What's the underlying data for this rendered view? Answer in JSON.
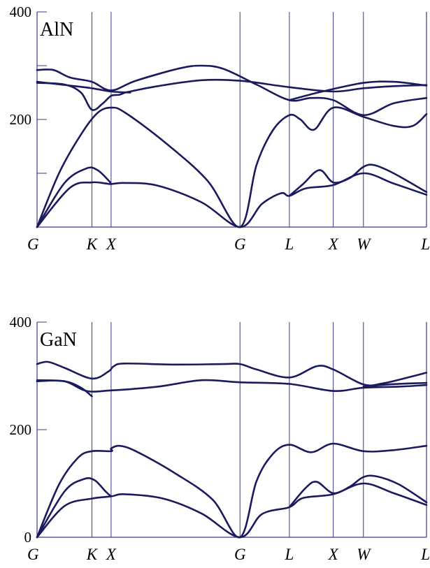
{
  "chart_data": [
    {
      "type": "line",
      "title": "AlN",
      "xlabel": "",
      "ylabel": "",
      "ylim": [
        0,
        400
      ],
      "yticks": [
        {
          "value": 0,
          "label": ""
        },
        {
          "value": 100,
          "label": ""
        },
        {
          "value": 200,
          "label": "200"
        },
        {
          "value": 300,
          "label": ""
        },
        {
          "value": 400,
          "label": "400"
        }
      ],
      "x_points": [
        "G",
        "K",
        "X",
        "G",
        "L",
        "X",
        "W",
        "L"
      ],
      "x_positions": [
        0,
        1.0,
        1.35,
        3.7,
        4.6,
        5.4,
        5.95,
        7.1
      ],
      "series": [
        {
          "values": [
            [
              0,
              0
            ],
            [
              0.6,
              73
            ],
            [
              1.0,
              83
            ],
            [
              1.25,
              81
            ],
            [
              1.35,
              80
            ],
            [
              1.6,
              82
            ],
            [
              2.2,
              77
            ],
            [
              3.0,
              46
            ],
            [
              3.7,
              0
            ],
            [
              4.1,
              43
            ],
            [
              4.45,
              63
            ],
            [
              4.6,
              58
            ],
            [
              4.9,
              72
            ],
            [
              5.4,
              78
            ],
            [
              5.95,
              100
            ],
            [
              6.5,
              81
            ],
            [
              7.1,
              60
            ]
          ]
        },
        {
          "values": [
            [
              0,
              0
            ],
            [
              0.5,
              82
            ],
            [
              0.9,
              109
            ],
            [
              1.1,
              106
            ],
            [
              1.3,
              87
            ],
            [
              1.35,
              80
            ]
          ]
        },
        {
          "values": [
            [
              4.6,
              58
            ],
            [
              4.85,
              80
            ],
            [
              5.15,
              106
            ],
            [
              5.4,
              83
            ],
            [
              5.7,
              91
            ],
            [
              5.95,
              112
            ],
            [
              6.15,
              115
            ],
            [
              6.5,
              100
            ],
            [
              7.1,
              65
            ]
          ]
        },
        {
          "values": [
            [
              0,
              0
            ],
            [
              0.4,
              100
            ],
            [
              0.8,
              172
            ],
            [
              1.1,
              212
            ],
            [
              1.35,
              222
            ],
            [
              1.6,
              213
            ],
            [
              2.3,
              160
            ],
            [
              3.1,
              87
            ],
            [
              3.7,
              0
            ],
            [
              4.0,
              115
            ],
            [
              4.3,
              180
            ],
            [
              4.6,
              208
            ],
            [
              4.8,
              200
            ],
            [
              5.05,
              181
            ],
            [
              5.4,
              222
            ],
            [
              5.95,
              205
            ],
            [
              6.5,
              188
            ],
            [
              6.85,
              188
            ],
            [
              7.1,
              210
            ]
          ]
        },
        {
          "values": [
            [
              0,
              268
            ],
            [
              0.5,
              265
            ],
            [
              0.8,
              250
            ],
            [
              1.0,
              218
            ],
            [
              1.2,
              230
            ],
            [
              1.35,
              244
            ],
            [
              1.5,
              246
            ],
            [
              1.6,
              250
            ]
          ]
        },
        {
          "values": [
            [
              0,
              292
            ],
            [
              0.3,
              292
            ],
            [
              0.6,
              278
            ],
            [
              1.0,
              270
            ],
            [
              1.35,
              254
            ],
            [
              1.8,
              272
            ],
            [
              2.6,
              295
            ],
            [
              3.0,
              300
            ],
            [
              3.4,
              294
            ],
            [
              4.0,
              265
            ],
            [
              4.6,
              236
            ],
            [
              5.0,
              240
            ],
            [
              5.4,
              236
            ],
            [
              5.95,
              208
            ],
            [
              6.5,
              230
            ],
            [
              7.1,
              240
            ]
          ]
        },
        {
          "values": [
            [
              0,
              270
            ],
            [
              0.6,
              263
            ],
            [
              1.0,
              258
            ],
            [
              1.35,
              252
            ],
            [
              1.7,
              250
            ]
          ]
        },
        {
          "values": [
            [
              1.6,
              250
            ],
            [
              2.2,
              262
            ],
            [
              3.0,
              273
            ],
            [
              3.7,
              272
            ],
            [
              4.6,
              260
            ],
            [
              5.4,
              252
            ],
            [
              5.95,
              258
            ],
            [
              6.5,
              262
            ],
            [
              7.1,
              264
            ]
          ]
        },
        {
          "values": [
            [
              4.6,
              236
            ],
            [
              5.2,
              252
            ],
            [
              5.95,
              268
            ],
            [
              6.5,
              270
            ],
            [
              7.1,
              263
            ]
          ]
        }
      ]
    },
    {
      "type": "line",
      "title": "GaN",
      "xlabel": "",
      "ylabel": "",
      "ylim": [
        0,
        400
      ],
      "yticks": [
        {
          "value": 0,
          "label": "0"
        },
        {
          "value": 200,
          "label": "200"
        },
        {
          "value": 400,
          "label": "400"
        }
      ],
      "x_points": [
        "G",
        "K",
        "X",
        "G",
        "L",
        "X",
        "W",
        "L"
      ],
      "x_positions": [
        0,
        1.0,
        1.35,
        3.7,
        4.6,
        5.4,
        5.95,
        7.1
      ],
      "series": [
        {
          "values": [
            [
              0,
              0
            ],
            [
              0.5,
              58
            ],
            [
              1.0,
              72
            ],
            [
              1.35,
              76
            ],
            [
              1.6,
              80
            ],
            [
              2.3,
              72
            ],
            [
              3.0,
              44
            ],
            [
              3.7,
              0
            ],
            [
              4.1,
              43
            ],
            [
              4.6,
              56
            ],
            [
              4.85,
              73
            ],
            [
              5.4,
              80
            ],
            [
              5.95,
              100
            ],
            [
              6.5,
              82
            ],
            [
              7.1,
              60
            ]
          ]
        },
        {
          "values": [
            [
              0,
              0
            ],
            [
              0.5,
              85
            ],
            [
              0.85,
              108
            ],
            [
              1.05,
              106
            ],
            [
              1.25,
              85
            ],
            [
              1.35,
              76
            ]
          ]
        },
        {
          "values": [
            [
              4.6,
              56
            ],
            [
              4.9,
              92
            ],
            [
              5.1,
              103
            ],
            [
              5.4,
              82
            ],
            [
              5.7,
              94
            ],
            [
              5.95,
              112
            ],
            [
              6.2,
              113
            ],
            [
              6.6,
              98
            ],
            [
              7.1,
              65
            ]
          ]
        },
        {
          "values": [
            [
              0,
              0
            ],
            [
              0.4,
              98
            ],
            [
              0.75,
              148
            ],
            [
              1.0,
              160
            ],
            [
              1.35,
              160
            ],
            [
              1.35,
              165
            ],
            [
              1.5,
              170
            ],
            [
              1.8,
              160
            ],
            [
              2.5,
              120
            ],
            [
              3.2,
              70
            ],
            [
              3.7,
              0
            ],
            [
              4.0,
              104
            ],
            [
              4.3,
              155
            ],
            [
              4.6,
              172
            ],
            [
              5.0,
              158
            ],
            [
              5.4,
              174
            ],
            [
              5.95,
              160
            ],
            [
              6.5,
              162
            ],
            [
              7.1,
              170
            ]
          ]
        },
        {
          "values": [
            [
              0,
              292
            ],
            [
              0.5,
              290
            ],
            [
              0.8,
              278
            ],
            [
              1.0,
              262
            ]
          ]
        },
        {
          "values": [
            [
              0,
              290
            ],
            [
              0.5,
              290
            ],
            [
              0.9,
              272
            ],
            [
              1.35,
              273
            ],
            [
              2.2,
              280
            ],
            [
              3.0,
              292
            ],
            [
              3.7,
              288
            ],
            [
              4.6,
              285
            ],
            [
              5.4,
              272
            ],
            [
              5.95,
              278
            ],
            [
              6.6,
              280
            ],
            [
              7.1,
              283
            ]
          ]
        },
        {
          "values": [
            [
              0,
              322
            ],
            [
              0.2,
              326
            ],
            [
              0.5,
              315
            ],
            [
              1.0,
              295
            ],
            [
              1.3,
              308
            ],
            [
              1.4,
              318
            ],
            [
              1.6,
              323
            ],
            [
              2.5,
              321
            ],
            [
              3.4,
              322
            ],
            [
              3.7,
              322
            ],
            [
              4.0,
              312
            ],
            [
              4.6,
              297
            ],
            [
              5.1,
              318
            ],
            [
              5.4,
              312
            ],
            [
              5.95,
              284
            ],
            [
              6.3,
              286
            ],
            [
              6.8,
              298
            ],
            [
              7.1,
              306
            ]
          ]
        },
        {
          "values": [
            [
              5.95,
              280
            ],
            [
              6.4,
              284
            ],
            [
              7.1,
              287
            ]
          ]
        }
      ]
    }
  ]
}
